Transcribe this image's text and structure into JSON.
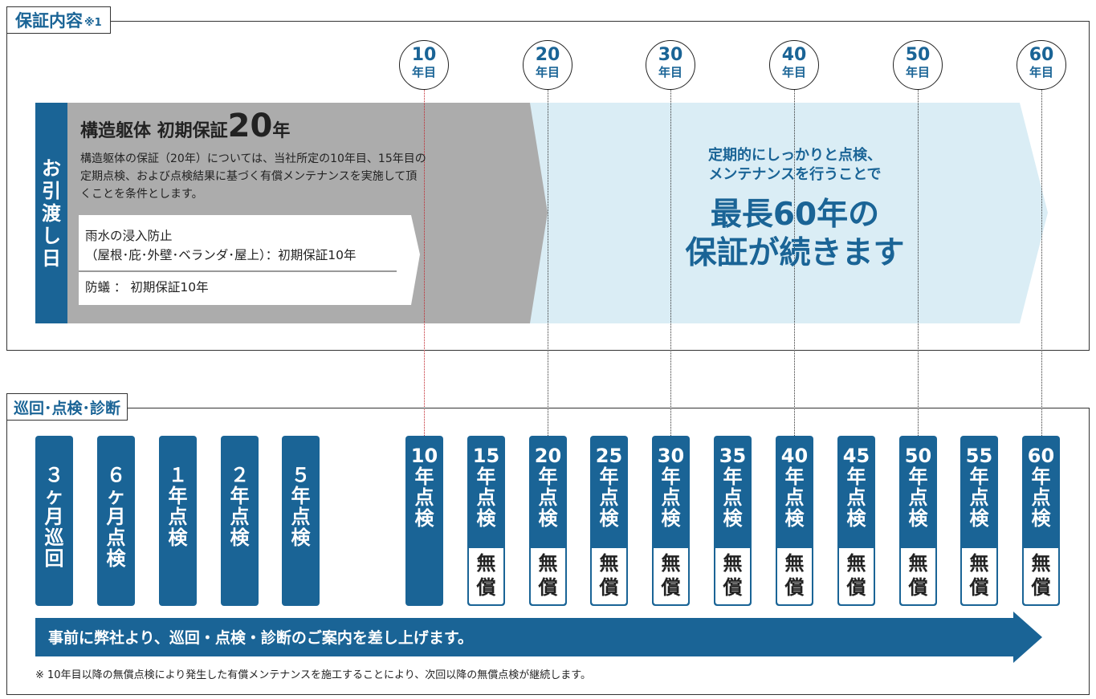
{
  "warranty_section": {
    "title": "保証内容",
    "title_note": "※1"
  },
  "years": [
    {
      "num": "10",
      "unit": "年目"
    },
    {
      "num": "20",
      "unit": "年目"
    },
    {
      "num": "30",
      "unit": "年目"
    },
    {
      "num": "40",
      "unit": "年目"
    },
    {
      "num": "50",
      "unit": "年目"
    },
    {
      "num": "60",
      "unit": "年目"
    }
  ],
  "handover": {
    "chars": [
      "お",
      "引",
      "渡",
      "し",
      "日"
    ]
  },
  "structure": {
    "head_prefix": "構造躯体 初期保証",
    "head_big": "20",
    "head_suffix": "年",
    "desc_lines": [
      "構造躯体の保証（20年）については、当社所定の10年目、15年目の",
      "定期点検、および点検結果に基づく有償メンテナンスを実施して頂",
      "くことを条件とします。"
    ]
  },
  "sub_warranties": {
    "rain_line1": "雨水の浸入防止",
    "rain_line2": "（屋根･庇･外壁･ベランダ･屋上）：初期保証10年",
    "termite": "防蟻 ： 初期保証10年"
  },
  "extended": {
    "small_line1": "定期的にしっかりと点検、",
    "small_line2": "メンテナンスを行うことで",
    "big_line1": "最長60年の",
    "big_line2": "保証が続きます"
  },
  "inspection_section": {
    "title": "巡回･点検･診断"
  },
  "inspections": [
    {
      "chars": [
        "３",
        "ヶ",
        "月",
        "巡",
        "回"
      ],
      "free": []
    },
    {
      "chars": [
        "６",
        "ヶ",
        "月",
        "点",
        "検"
      ],
      "free": []
    },
    {
      "chars": [
        "１",
        "年",
        "点",
        "検"
      ],
      "free": []
    },
    {
      "chars": [
        "２",
        "年",
        "点",
        "検"
      ],
      "free": []
    },
    {
      "chars": [
        "５",
        "年",
        "点",
        "検"
      ],
      "free": []
    },
    {
      "chars": [
        "10",
        "年",
        "点",
        "検"
      ],
      "free": []
    },
    {
      "chars": [
        "15",
        "年",
        "点",
        "検"
      ],
      "free": [
        "無",
        "償"
      ]
    },
    {
      "chars": [
        "20",
        "年",
        "点",
        "検"
      ],
      "free": [
        "無",
        "償"
      ]
    },
    {
      "chars": [
        "25",
        "年",
        "点",
        "検"
      ],
      "free": [
        "無",
        "償"
      ]
    },
    {
      "chars": [
        "30",
        "年",
        "点",
        "検"
      ],
      "free": [
        "無",
        "償"
      ]
    },
    {
      "chars": [
        "35",
        "年",
        "点",
        "検"
      ],
      "free": [
        "無",
        "償"
      ]
    },
    {
      "chars": [
        "40",
        "年",
        "点",
        "検"
      ],
      "free": [
        "無",
        "償"
      ]
    },
    {
      "chars": [
        "45",
        "年",
        "点",
        "検"
      ],
      "free": [
        "無",
        "償"
      ]
    },
    {
      "chars": [
        "50",
        "年",
        "点",
        "検"
      ],
      "free": [
        "無",
        "償"
      ]
    },
    {
      "chars": [
        "55",
        "年",
        "点",
        "検"
      ],
      "free": [
        "無",
        "償"
      ]
    },
    {
      "chars": [
        "60",
        "年",
        "点",
        "検"
      ],
      "free": [
        "無",
        "償"
      ]
    }
  ],
  "arrow_text": "事前に弊社より、巡回・点検・診断のご案内を差し上げます。",
  "footnote": "※ 10年目以降の無償点検により発生した有償メンテナンスを施工することにより、次回以降の無償点検が継続します。",
  "colors": {
    "brand_blue": "#1a6496",
    "light_blue": "#daedf5",
    "gray": "#acacac",
    "red_line": "#c0272d"
  }
}
